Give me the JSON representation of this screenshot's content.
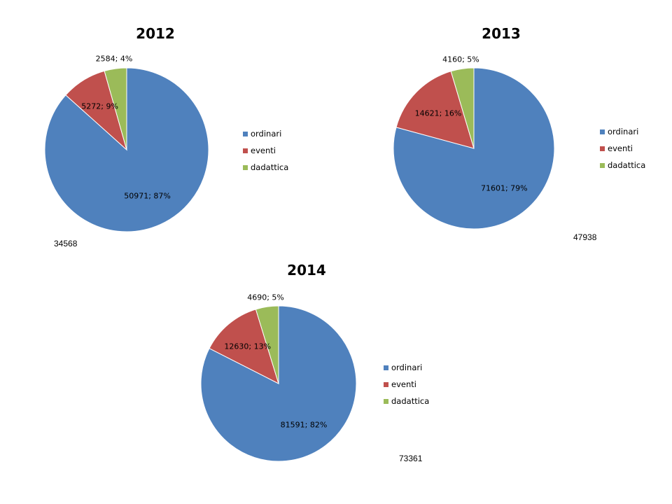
{
  "colors": {
    "ordinari": "#4F81BD",
    "eventi": "#C0504D",
    "dadattica": "#9BBB59"
  },
  "chart_data": [
    {
      "type": "pie",
      "title": "2012",
      "total_note": "34568",
      "slices": [
        {
          "name": "ordinari",
          "value": 50971,
          "percent": 87,
          "label": "50971; 87%"
        },
        {
          "name": "eventi",
          "value": 5272,
          "percent": 9,
          "label": "5272; 9%"
        },
        {
          "name": "dadattica",
          "value": 2584,
          "percent": 4,
          "label": "2584; 4%"
        }
      ],
      "legend": [
        "ordinari",
        "eventi",
        "dadattica"
      ],
      "legend_position": "right"
    },
    {
      "type": "pie",
      "title": "2013",
      "total_note": "47938",
      "slices": [
        {
          "name": "ordinari",
          "value": 71601,
          "percent": 79,
          "label": "71601; 79%"
        },
        {
          "name": "eventi",
          "value": 14621,
          "percent": 16,
          "label": "14621; 16%"
        },
        {
          "name": "dadattica",
          "value": 4160,
          "percent": 5,
          "label": "4160; 5%"
        }
      ],
      "legend": [
        "ordinari",
        "eventi",
        "dadattica"
      ],
      "legend_position": "right"
    },
    {
      "type": "pie",
      "title": "2014",
      "total_note": "73361",
      "slices": [
        {
          "name": "ordinari",
          "value": 81591,
          "percent": 82,
          "label": "81591; 82%"
        },
        {
          "name": "eventi",
          "value": 12630,
          "percent": 13,
          "label": "12630; 13%"
        },
        {
          "name": "dadattica",
          "value": 4690,
          "percent": 5,
          "label": "4690; 5%"
        }
      ],
      "legend": [
        "ordinari",
        "eventi",
        "dadattica"
      ],
      "legend_position": "right"
    }
  ]
}
